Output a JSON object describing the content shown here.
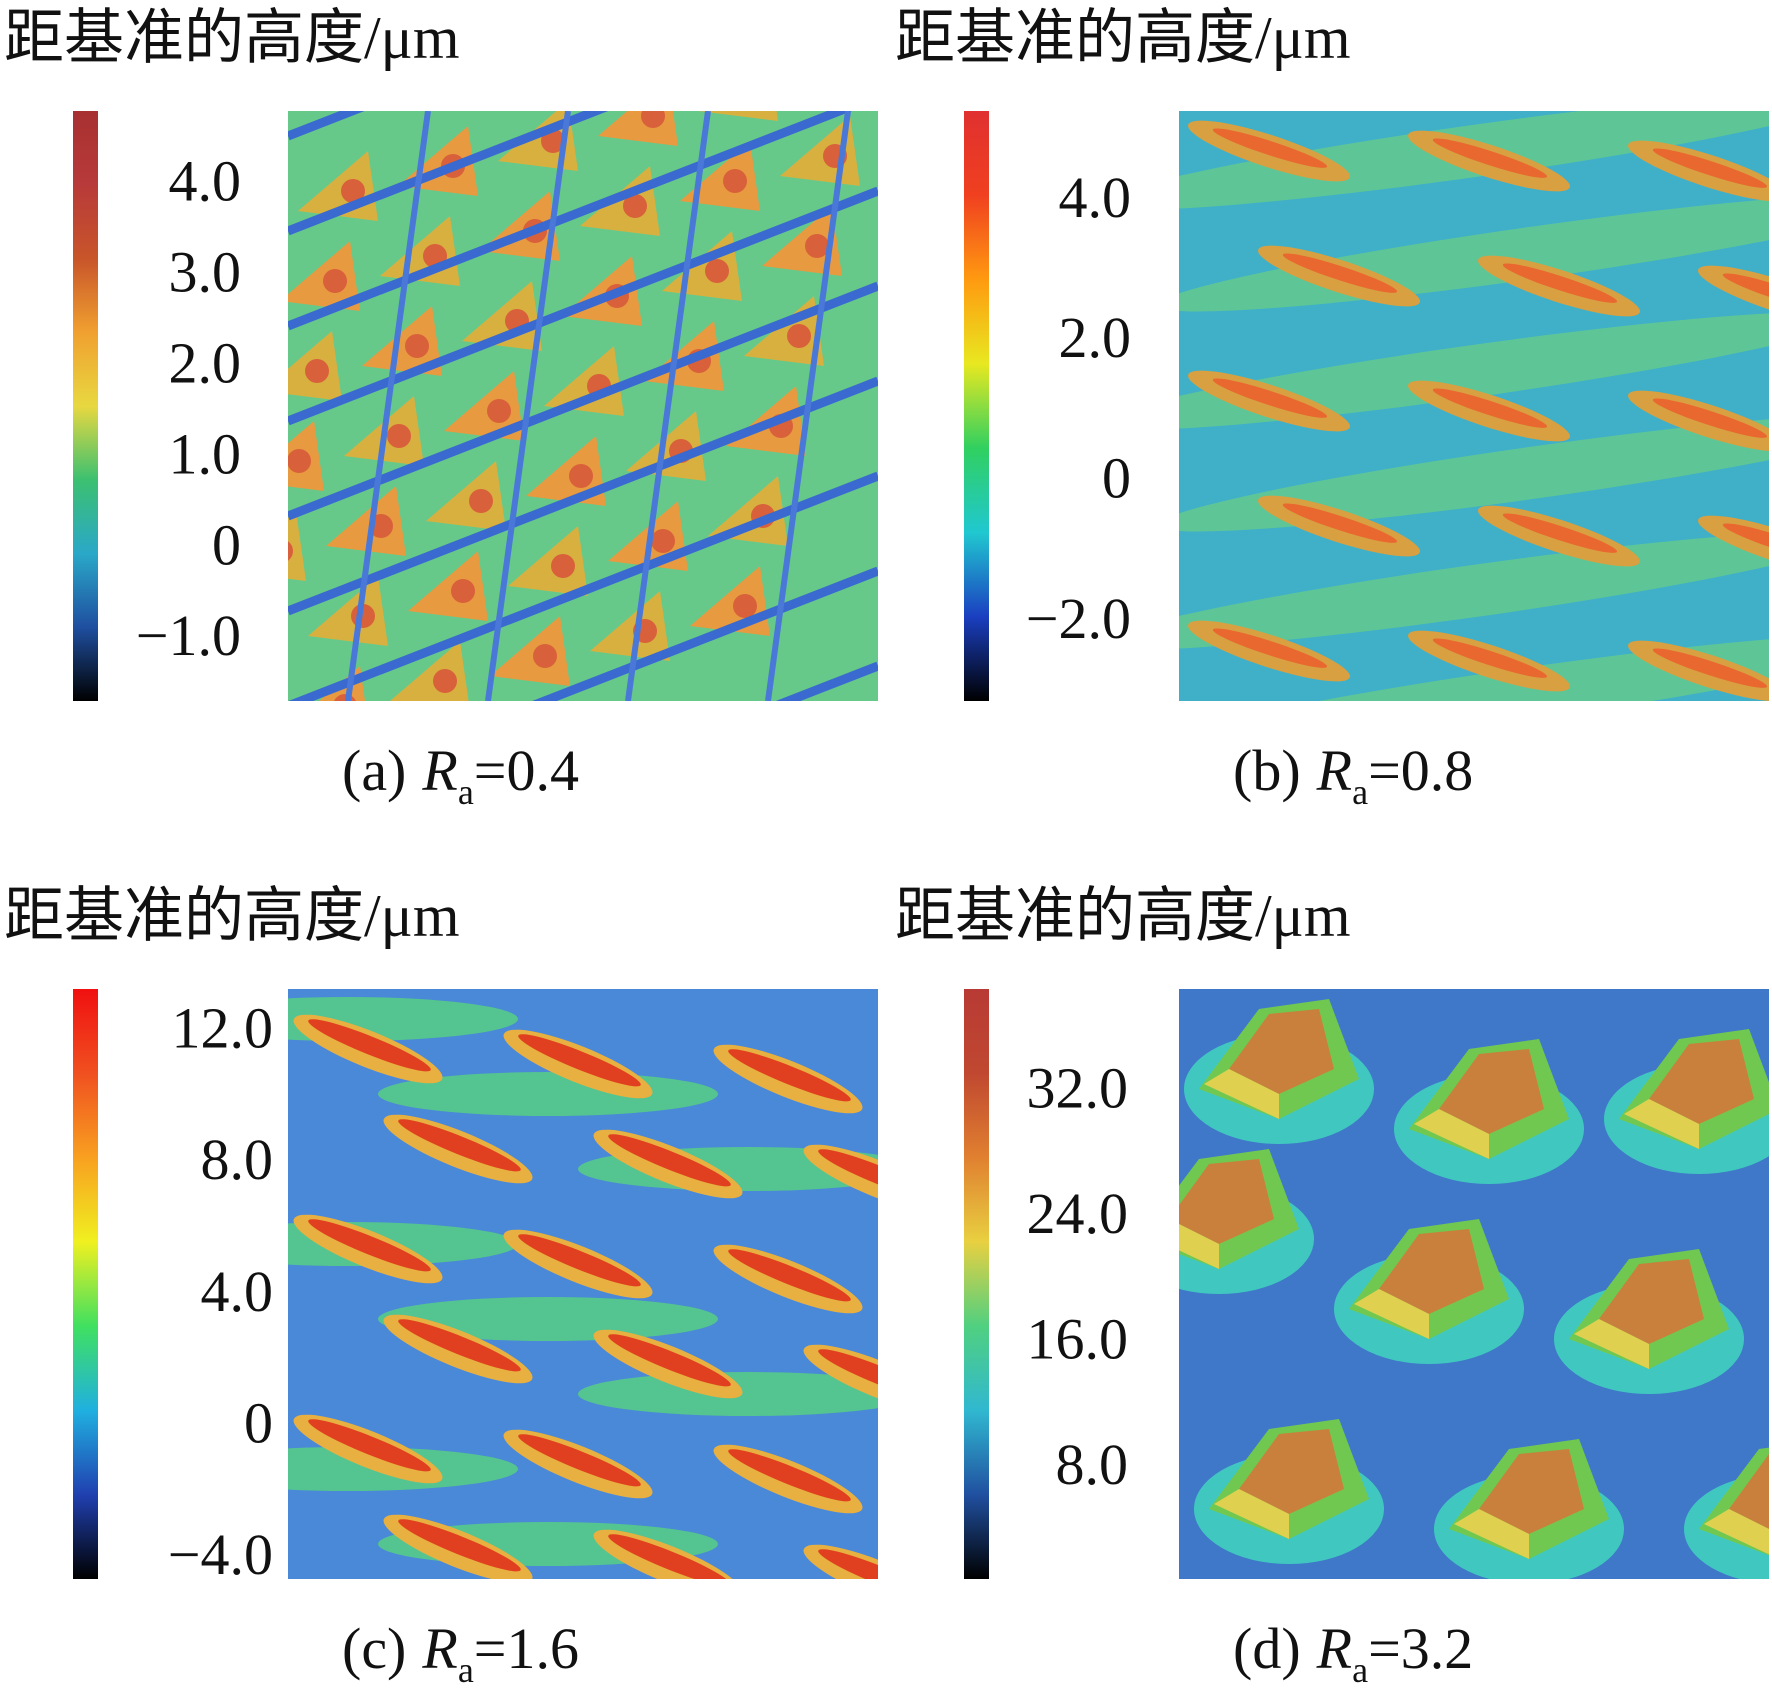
{
  "panels": [
    {
      "title": "距基准的高度/μm",
      "colorbar": {
        "lim": [
          -1.65,
          4.84
        ],
        "ticks": [
          {
            "value": 4,
            "label": "4.0"
          },
          {
            "value": 3,
            "label": "3.0"
          },
          {
            "value": 2,
            "label": "2.0"
          },
          {
            "value": 1,
            "label": "1.0"
          },
          0,
          {
            "value": -1,
            "label": "−1.0"
          }
        ],
        "colors": [
          "#000000",
          "#1f4fa0",
          "#2aa8c8",
          "#3cc070",
          "#e8d840",
          "#f0a030",
          "#c8552a",
          "#b83a3a",
          "#a83030"
        ]
      },
      "caption": {
        "label": "(a)",
        "symbol": "R",
        "subscript": "a",
        "value": "=0.4"
      }
    },
    {
      "title": "距基准的高度/μm",
      "colorbar": {
        "lim": [
          -3.09,
          5.32
        ],
        "ticks": [
          {
            "value": 4,
            "label": "4.0"
          },
          {
            "value": 2,
            "label": "2.0"
          },
          0,
          {
            "value": -2,
            "label": "−2.0"
          }
        ],
        "colors": [
          "#000000",
          "#1a3fc0",
          "#20c8d0",
          "#30d060",
          "#e8e820",
          "#ff9a10",
          "#f04020",
          "#e03030"
        ]
      },
      "caption": {
        "label": "(b)",
        "symbol": "R",
        "subscript": "a",
        "value": "=0.8"
      }
    },
    {
      "title": "距基准的高度/μm",
      "colorbar": {
        "lim": [
          -4.55,
          13.37
        ],
        "ticks": [
          {
            "value": 12,
            "label": "12.0"
          },
          {
            "value": 8,
            "label": "8.0"
          },
          {
            "value": 4,
            "label": "4.0"
          },
          0,
          {
            "value": -4,
            "label": "−4.0"
          }
        ],
        "colors": [
          "#000000",
          "#2040b0",
          "#20b0e0",
          "#40e060",
          "#f0f020",
          "#f8a020",
          "#f05020",
          "#f01010"
        ]
      },
      "caption": {
        "label": "(c)",
        "symbol": "R",
        "subscript": "a",
        "value": "=1.6"
      }
    },
    {
      "title": "距基准的高度/μm",
      "colorbar": {
        "lim": [
          1.1,
          38.7
        ],
        "ticks": [
          {
            "value": 32,
            "label": "32.0"
          },
          {
            "value": 24,
            "label": "24.0"
          },
          {
            "value": 16,
            "label": "16.0"
          },
          {
            "value": 8,
            "label": "8.0"
          }
        ],
        "colors": [
          "#000000",
          "#2050a0",
          "#30b8d0",
          "#50d080",
          "#e8d040",
          "#e08030",
          "#c04830",
          "#b83a34"
        ]
      },
      "caption": {
        "label": "(d)",
        "symbol": "R",
        "subscript": "a",
        "value": "=3.2"
      }
    }
  ]
}
